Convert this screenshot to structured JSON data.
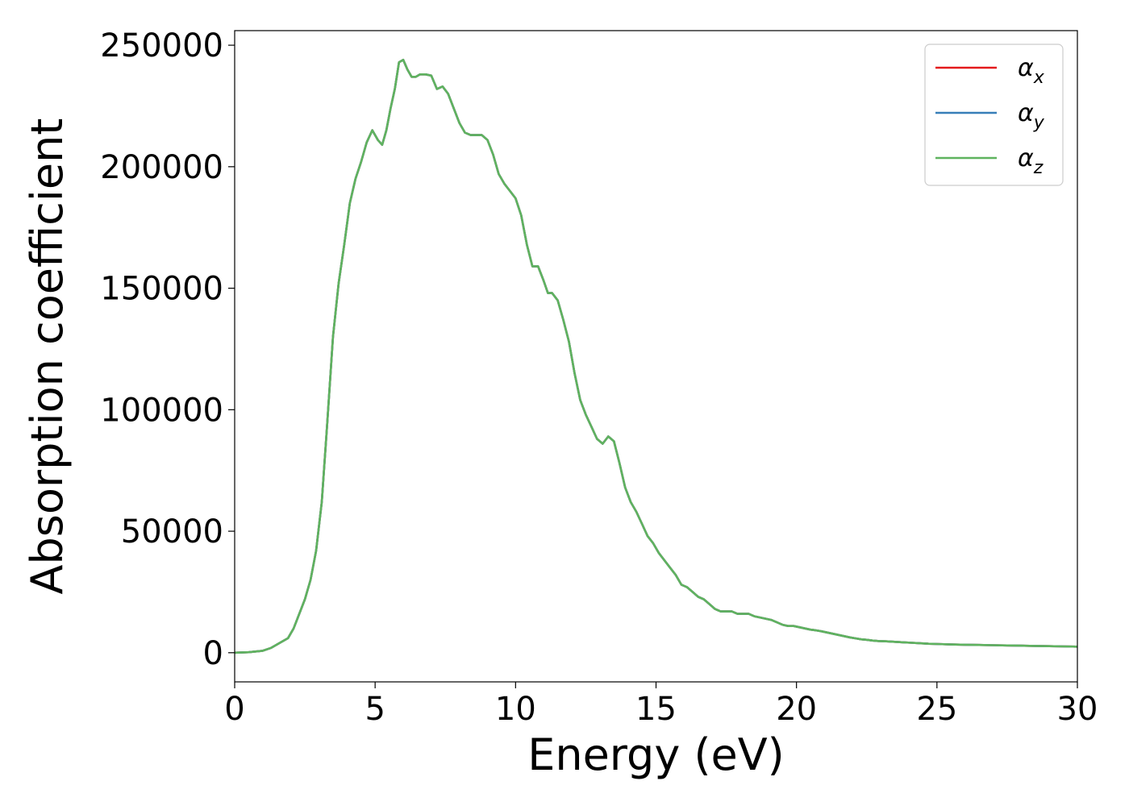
{
  "chart_data": {
    "type": "line",
    "title": "",
    "xlabel": "Energy (eV)",
    "ylabel": "Absorption coefficient",
    "xlim": [
      0,
      30
    ],
    "ylim": [
      -12000,
      256000
    ],
    "xticks": [
      0,
      5,
      10,
      15,
      20,
      25,
      30
    ],
    "yticks": [
      0,
      50000,
      100000,
      150000,
      200000,
      250000
    ],
    "xtick_labels": [
      "0",
      "5",
      "10",
      "15",
      "20",
      "25",
      "30"
    ],
    "ytick_labels": [
      "0",
      "50000",
      "100000",
      "150000",
      "200000",
      "250000"
    ],
    "grid": false,
    "legend_position": "top-right",
    "series": [
      {
        "name": "α_x",
        "legend_base": "α",
        "legend_sub": "x",
        "color": "#e41a1c",
        "x": [
          0,
          0.5,
          1,
          1.3,
          1.6,
          1.9,
          2.1,
          2.3,
          2.5,
          2.7,
          2.9,
          3.1,
          3.3,
          3.5,
          3.7,
          3.9,
          4.1,
          4.3,
          4.5,
          4.7,
          4.9,
          5.1,
          5.25,
          5.4,
          5.55,
          5.7,
          5.85,
          6,
          6.15,
          6.3,
          6.45,
          6.6,
          6.8,
          7,
          7.2,
          7.4,
          7.6,
          7.8,
          8,
          8.2,
          8.4,
          8.6,
          8.8,
          9,
          9.2,
          9.4,
          9.6,
          9.8,
          10,
          10.2,
          10.4,
          10.6,
          10.8,
          11,
          11.15,
          11.3,
          11.5,
          11.7,
          11.9,
          12.1,
          12.3,
          12.5,
          12.7,
          12.9,
          13.1,
          13.3,
          13.5,
          13.7,
          13.9,
          14.1,
          14.3,
          14.5,
          14.7,
          14.9,
          15.1,
          15.3,
          15.5,
          15.7,
          15.9,
          16.1,
          16.3,
          16.5,
          16.7,
          16.9,
          17.1,
          17.3,
          17.5,
          17.7,
          17.9,
          18.1,
          18.3,
          18.5,
          18.7,
          18.9,
          19.1,
          19.3,
          19.5,
          19.7,
          19.9,
          20.1,
          20.3,
          20.5,
          20.7,
          20.9,
          21.1,
          21.3,
          21.5,
          21.7,
          21.9,
          22.1,
          22.3,
          22.5,
          22.7,
          22.9,
          23.2,
          23.5,
          23.8,
          24.1,
          24.4,
          24.7,
          25,
          25.5,
          26,
          26.5,
          27,
          27.5,
          28,
          28.5,
          29,
          29.5,
          30
        ],
        "values": [
          0,
          200,
          800,
          2000,
          4000,
          6000,
          10000,
          16000,
          22000,
          30000,
          42000,
          62000,
          95000,
          130000,
          152000,
          168000,
          185000,
          195000,
          202000,
          210000,
          215000,
          211000,
          209000,
          215000,
          224000,
          232000,
          243000,
          244000,
          240000,
          237000,
          237000,
          238000,
          238000,
          237500,
          232000,
          233000,
          230000,
          224000,
          218000,
          214000,
          213000,
          213000,
          213000,
          211000,
          205000,
          197000,
          193000,
          190000,
          187000,
          180000,
          168000,
          159000,
          159000,
          153000,
          148000,
          148000,
          145000,
          137000,
          128000,
          115000,
          104000,
          98000,
          93000,
          88000,
          86000,
          89000,
          87000,
          78000,
          68000,
          62000,
          58000,
          53000,
          48000,
          45000,
          41000,
          38000,
          35000,
          32000,
          28000,
          27000,
          25000,
          23000,
          22000,
          20000,
          18000,
          17000,
          17000,
          17000,
          16000,
          16000,
          16000,
          15000,
          14500,
          14000,
          13500,
          12500,
          11500,
          11000,
          11000,
          10500,
          10000,
          9500,
          9200,
          8800,
          8300,
          7800,
          7300,
          6800,
          6300,
          5900,
          5500,
          5300,
          5000,
          4800,
          4700,
          4500,
          4300,
          4100,
          3900,
          3700,
          3600,
          3400,
          3300,
          3200,
          3100,
          3000,
          2900,
          2800,
          2700,
          2600,
          2500
        ]
      },
      {
        "name": "α_y",
        "legend_base": "α",
        "legend_sub": "y",
        "color": "#377eb8",
        "x": [
          0,
          0.5,
          1,
          1.3,
          1.6,
          1.9,
          2.1,
          2.3,
          2.5,
          2.7,
          2.9,
          3.1,
          3.3,
          3.5,
          3.7,
          3.9,
          4.1,
          4.3,
          4.5,
          4.7,
          4.9,
          5.1,
          5.25,
          5.4,
          5.55,
          5.7,
          5.85,
          6,
          6.15,
          6.3,
          6.45,
          6.6,
          6.8,
          7,
          7.2,
          7.4,
          7.6,
          7.8,
          8,
          8.2,
          8.4,
          8.6,
          8.8,
          9,
          9.2,
          9.4,
          9.6,
          9.8,
          10,
          10.2,
          10.4,
          10.6,
          10.8,
          11,
          11.15,
          11.3,
          11.5,
          11.7,
          11.9,
          12.1,
          12.3,
          12.5,
          12.7,
          12.9,
          13.1,
          13.3,
          13.5,
          13.7,
          13.9,
          14.1,
          14.3,
          14.5,
          14.7,
          14.9,
          15.1,
          15.3,
          15.5,
          15.7,
          15.9,
          16.1,
          16.3,
          16.5,
          16.7,
          16.9,
          17.1,
          17.3,
          17.5,
          17.7,
          17.9,
          18.1,
          18.3,
          18.5,
          18.7,
          18.9,
          19.1,
          19.3,
          19.5,
          19.7,
          19.9,
          20.1,
          20.3,
          20.5,
          20.7,
          20.9,
          21.1,
          21.3,
          21.5,
          21.7,
          21.9,
          22.1,
          22.3,
          22.5,
          22.7,
          22.9,
          23.2,
          23.5,
          23.8,
          24.1,
          24.4,
          24.7,
          25,
          25.5,
          26,
          26.5,
          27,
          27.5,
          28,
          28.5,
          29,
          29.5,
          30
        ],
        "values": [
          0,
          200,
          800,
          2000,
          4000,
          6000,
          10000,
          16000,
          22000,
          30000,
          42000,
          62000,
          95000,
          130000,
          152000,
          168000,
          185000,
          195000,
          202000,
          210000,
          215000,
          211000,
          209000,
          215000,
          224000,
          232000,
          243000,
          244000,
          240000,
          237000,
          237000,
          238000,
          238000,
          237500,
          232000,
          233000,
          230000,
          224000,
          218000,
          214000,
          213000,
          213000,
          213000,
          211000,
          205000,
          197000,
          193000,
          190000,
          187000,
          180000,
          168000,
          159000,
          159000,
          153000,
          148000,
          148000,
          145000,
          137000,
          128000,
          115000,
          104000,
          98000,
          93000,
          88000,
          86000,
          89000,
          87000,
          78000,
          68000,
          62000,
          58000,
          53000,
          48000,
          45000,
          41000,
          38000,
          35000,
          32000,
          28000,
          27000,
          25000,
          23000,
          22000,
          20000,
          18000,
          17000,
          17000,
          17000,
          16000,
          16000,
          16000,
          15000,
          14500,
          14000,
          13500,
          12500,
          11500,
          11000,
          11000,
          10500,
          10000,
          9500,
          9200,
          8800,
          8300,
          7800,
          7300,
          6800,
          6300,
          5900,
          5500,
          5300,
          5000,
          4800,
          4700,
          4500,
          4300,
          4100,
          3900,
          3700,
          3600,
          3400,
          3300,
          3200,
          3100,
          3000,
          2900,
          2800,
          2700,
          2600,
          2500
        ]
      },
      {
        "name": "α_z",
        "legend_base": "α",
        "legend_sub": "z",
        "color": "#5fb35f",
        "x": [
          0,
          0.5,
          1,
          1.3,
          1.6,
          1.9,
          2.1,
          2.3,
          2.5,
          2.7,
          2.9,
          3.1,
          3.3,
          3.5,
          3.7,
          3.9,
          4.1,
          4.3,
          4.5,
          4.7,
          4.9,
          5.1,
          5.25,
          5.4,
          5.55,
          5.7,
          5.85,
          6,
          6.15,
          6.3,
          6.45,
          6.6,
          6.8,
          7,
          7.2,
          7.4,
          7.6,
          7.8,
          8,
          8.2,
          8.4,
          8.6,
          8.8,
          9,
          9.2,
          9.4,
          9.6,
          9.8,
          10,
          10.2,
          10.4,
          10.6,
          10.8,
          11,
          11.15,
          11.3,
          11.5,
          11.7,
          11.9,
          12.1,
          12.3,
          12.5,
          12.7,
          12.9,
          13.1,
          13.3,
          13.5,
          13.7,
          13.9,
          14.1,
          14.3,
          14.5,
          14.7,
          14.9,
          15.1,
          15.3,
          15.5,
          15.7,
          15.9,
          16.1,
          16.3,
          16.5,
          16.7,
          16.9,
          17.1,
          17.3,
          17.5,
          17.7,
          17.9,
          18.1,
          18.3,
          18.5,
          18.7,
          18.9,
          19.1,
          19.3,
          19.5,
          19.7,
          19.9,
          20.1,
          20.3,
          20.5,
          20.7,
          20.9,
          21.1,
          21.3,
          21.5,
          21.7,
          21.9,
          22.1,
          22.3,
          22.5,
          22.7,
          22.9,
          23.2,
          23.5,
          23.8,
          24.1,
          24.4,
          24.7,
          25,
          25.5,
          26,
          26.5,
          27,
          27.5,
          28,
          28.5,
          29,
          29.5,
          30
        ],
        "values": [
          0,
          200,
          800,
          2000,
          4000,
          6000,
          10000,
          16000,
          22000,
          30000,
          42000,
          62000,
          95000,
          130000,
          152000,
          168000,
          185000,
          195000,
          202000,
          210000,
          215000,
          211000,
          209000,
          215000,
          224000,
          232000,
          243000,
          244000,
          240000,
          237000,
          237000,
          238000,
          238000,
          237500,
          232000,
          233000,
          230000,
          224000,
          218000,
          214000,
          213000,
          213000,
          213000,
          211000,
          205000,
          197000,
          193000,
          190000,
          187000,
          180000,
          168000,
          159000,
          159000,
          153000,
          148000,
          148000,
          145000,
          137000,
          128000,
          115000,
          104000,
          98000,
          93000,
          88000,
          86000,
          89000,
          87000,
          78000,
          68000,
          62000,
          58000,
          53000,
          48000,
          45000,
          41000,
          38000,
          35000,
          32000,
          28000,
          27000,
          25000,
          23000,
          22000,
          20000,
          18000,
          17000,
          17000,
          17000,
          16000,
          16000,
          16000,
          15000,
          14500,
          14000,
          13500,
          12500,
          11500,
          11000,
          11000,
          10500,
          10000,
          9500,
          9200,
          8800,
          8300,
          7800,
          7300,
          6800,
          6300,
          5900,
          5500,
          5300,
          5000,
          4800,
          4700,
          4500,
          4300,
          4100,
          3900,
          3700,
          3600,
          3400,
          3300,
          3200,
          3100,
          3000,
          2900,
          2800,
          2700,
          2600,
          2500
        ]
      }
    ]
  }
}
